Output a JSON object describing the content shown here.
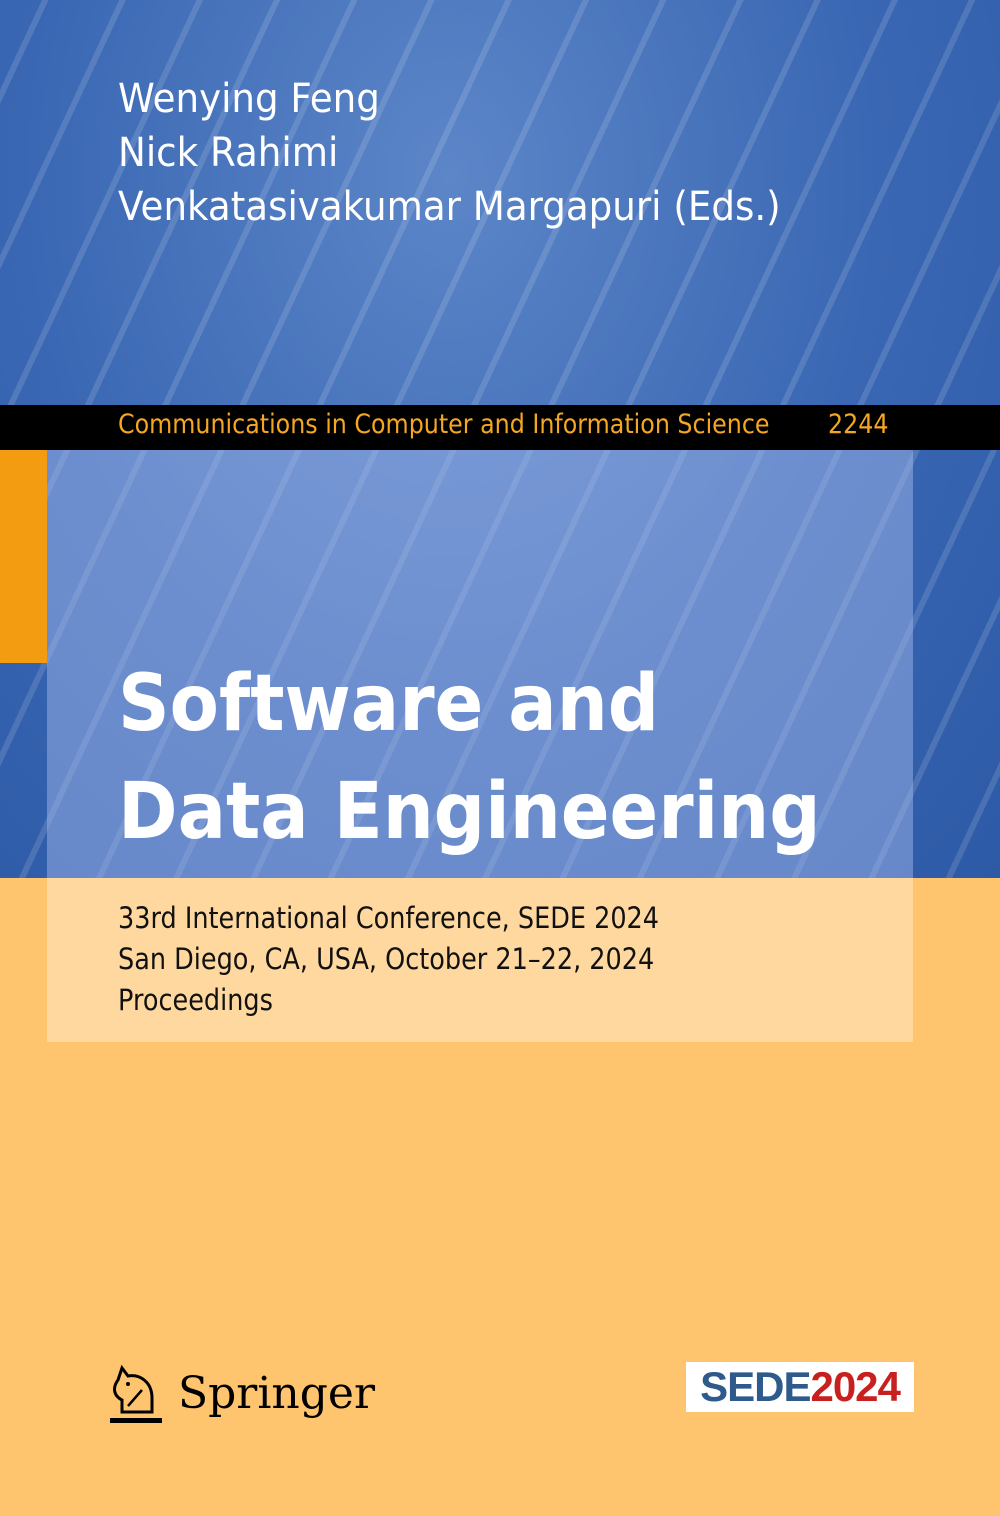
{
  "authors": [
    "Wenying Feng",
    "Nick Rahimi",
    "Venkatasivakumar Margapuri (Eds.)"
  ],
  "series": {
    "name": "Communications in Computer and Information Science",
    "volume": "2244"
  },
  "title": [
    "Software and",
    "Data Engineering"
  ],
  "subtitle": [
    "33rd International Conference, SEDE 2024",
    "San Diego, CA, USA, October 21–22, 2024",
    "Proceedings"
  ],
  "publisher": {
    "name": "Springer",
    "icon": "chess-knight-logo"
  },
  "conference_logo": {
    "part1": "SEDE",
    "part2": "2024",
    "colors": {
      "part1": "#2e5b8c",
      "part2": "#c8201e"
    }
  },
  "colors": {
    "blue": "#3a67b3",
    "orange": "#ffc46e",
    "accent": "#f39c12",
    "series_text": "#f5a623"
  }
}
